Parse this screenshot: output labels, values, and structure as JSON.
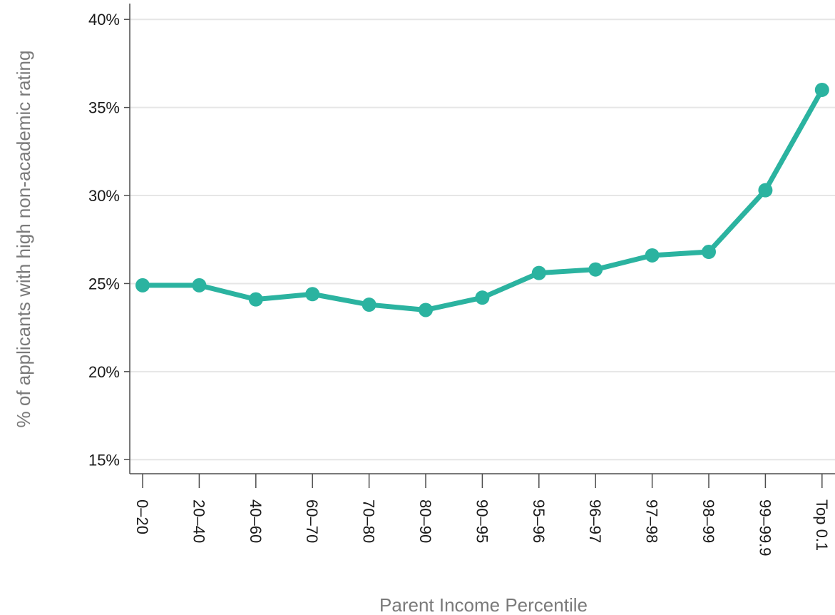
{
  "chart_data": {
    "type": "line",
    "categories": [
      "0–20",
      "20–40",
      "40–60",
      "60–70",
      "70–80",
      "80–90",
      "90–95",
      "95–96",
      "96–97",
      "97–98",
      "98–99",
      "99–99.9",
      "Top 0.1"
    ],
    "values": [
      24.9,
      24.9,
      24.1,
      24.4,
      23.8,
      23.5,
      24.2,
      25.6,
      25.8,
      26.6,
      26.8,
      30.3,
      36.0
    ],
    "xlabel": "Parent Income Percentile",
    "ylabel": "% of applicants with high non-academic rating",
    "ylim": [
      14.2,
      40.9
    ],
    "yticks": [
      15,
      20,
      25,
      30,
      35,
      40
    ],
    "ytick_labels": [
      "15%",
      "20%",
      "25%",
      "30%",
      "35%",
      "40%"
    ],
    "grid": true,
    "color": "#2bb3a0"
  }
}
